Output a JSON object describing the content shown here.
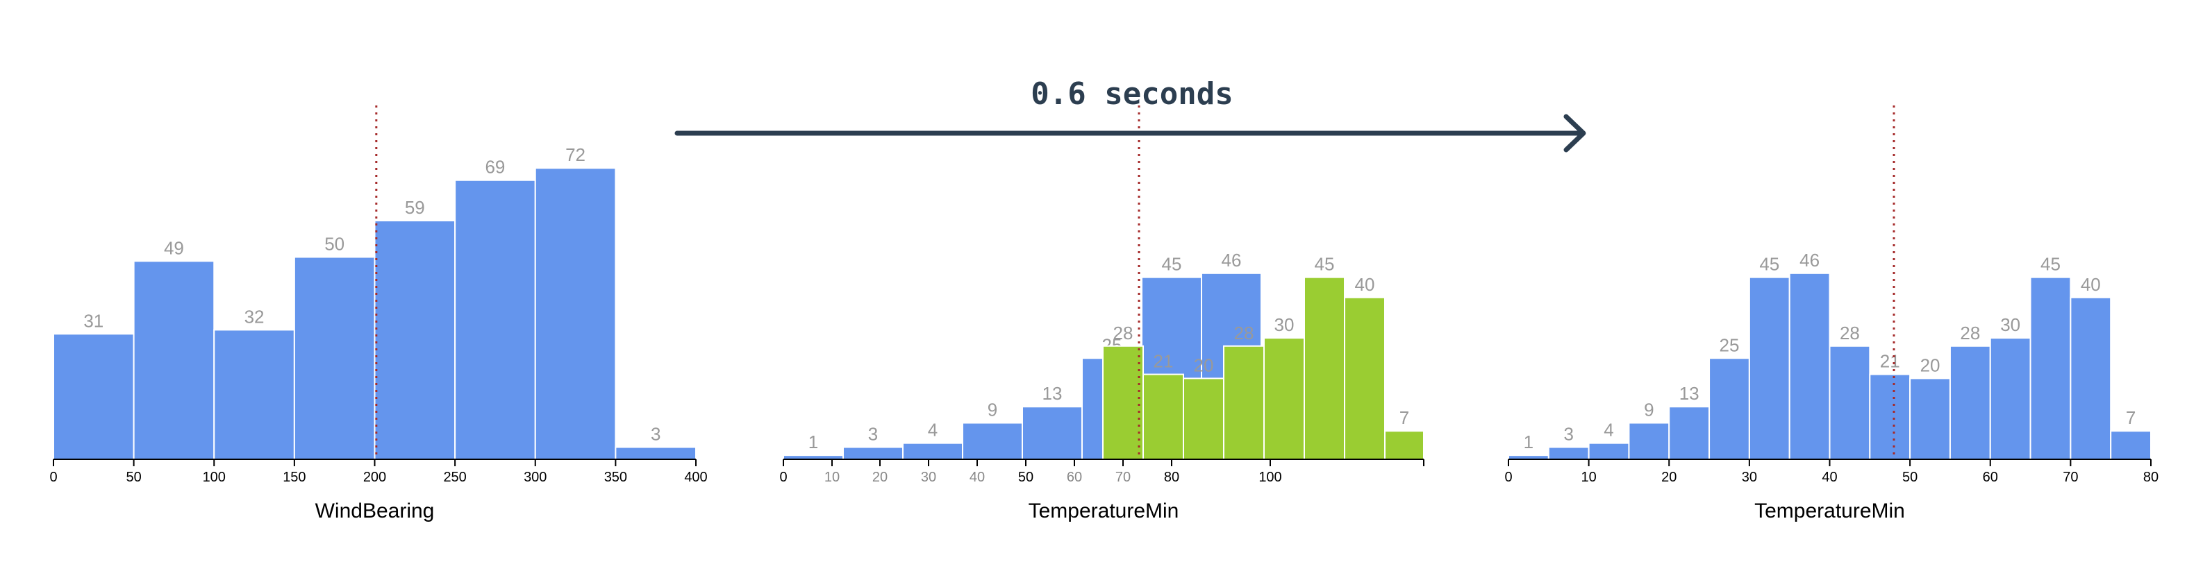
{
  "colors": {
    "bar": "#6495ed",
    "bar_highlight": "#9acd32",
    "bar_label": "#999999",
    "median_line": "#a52a2a",
    "arrow": "#2c3e50"
  },
  "transition": {
    "label": "0.6 seconds"
  },
  "chart_data": [
    {
      "type": "bar",
      "panel": "left",
      "xlabel": "WindBearing",
      "xlim": [
        0,
        400
      ],
      "ticks": [
        0,
        50,
        100,
        150,
        200,
        250,
        300,
        350,
        400
      ],
      "bin_edges": [
        0,
        50,
        100,
        150,
        200,
        250,
        300,
        350,
        400
      ],
      "values": [
        31,
        49,
        32,
        50,
        59,
        69,
        72,
        3
      ],
      "median_marker": 201
    },
    {
      "type": "bar",
      "panel": "middle-transition",
      "xlabel": "TemperatureMin",
      "ticks": [
        {
          "label": "0",
          "grey": false
        },
        {
          "label": "10",
          "grey": true
        },
        {
          "label": "20",
          "grey": true
        },
        {
          "label": "30",
          "grey": true
        },
        {
          "label": "40",
          "grey": true
        },
        {
          "label": "50",
          "grey": false
        },
        {
          "label": "60",
          "grey": true
        },
        {
          "label": "70",
          "grey": true
        },
        {
          "label": "80",
          "grey": false
        },
        {
          "label": "100",
          "grey": false
        }
      ],
      "series": [
        {
          "name": "",
          "color_key": "bar",
          "values": [
            1,
            3,
            4,
            9,
            13,
            25,
            45,
            46
          ]
        },
        {
          "name": "",
          "color_key": "bar_highlight",
          "values": [
            28,
            21,
            20,
            28,
            30,
            45,
            40,
            7
          ]
        }
      ],
      "median_marker": 72.5
    },
    {
      "type": "bar",
      "panel": "right",
      "xlabel": "TemperatureMin",
      "xlim": [
        0,
        80
      ],
      "ticks": [
        0,
        10,
        20,
        30,
        40,
        50,
        60,
        70,
        80
      ],
      "bin_edges": [
        0,
        5,
        10,
        15,
        20,
        25,
        30,
        35,
        40,
        45,
        50,
        55,
        60,
        65,
        70,
        75,
        80
      ],
      "values": [
        1,
        3,
        4,
        9,
        13,
        25,
        45,
        46,
        28,
        21,
        20,
        28,
        30,
        45,
        40,
        7
      ],
      "median_marker": 48
    }
  ]
}
